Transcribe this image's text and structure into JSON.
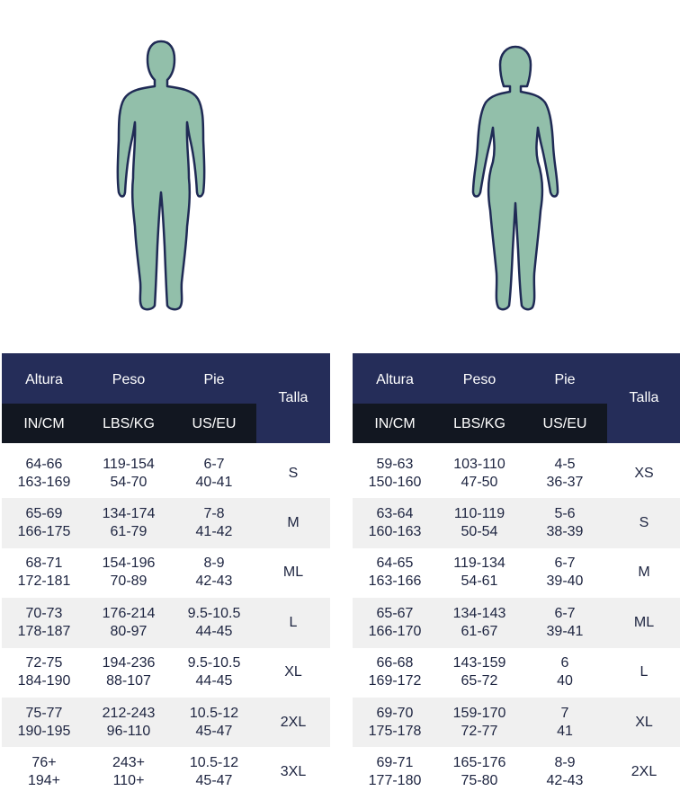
{
  "headers": {
    "altura": "Altura",
    "peso": "Peso",
    "pie": "Pie",
    "talla": "Talla",
    "in_cm": "IN/CM",
    "lbs_kg": "LBS/KG",
    "us_eu": "US/EU"
  },
  "colors": {
    "header_navy": "#252d59",
    "header_dark": "#121721",
    "figure_fill": "#92bfaa",
    "figure_outline": "#1f2a55",
    "row_alt": "#f0f0f0",
    "text": "#1d2440"
  },
  "men": {
    "rows": [
      {
        "altura_in": "64-66",
        "altura_cm": "163-169",
        "peso_lbs": "119-154",
        "peso_kg": "54-70",
        "pie_us": "6-7",
        "pie_eu": "40-41",
        "talla": "S"
      },
      {
        "altura_in": "65-69",
        "altura_cm": "166-175",
        "peso_lbs": "134-174",
        "peso_kg": "61-79",
        "pie_us": "7-8",
        "pie_eu": "41-42",
        "talla": "M"
      },
      {
        "altura_in": "68-71",
        "altura_cm": "172-181",
        "peso_lbs": "154-196",
        "peso_kg": "70-89",
        "pie_us": "8-9",
        "pie_eu": "42-43",
        "talla": "ML"
      },
      {
        "altura_in": "70-73",
        "altura_cm": "178-187",
        "peso_lbs": "176-214",
        "peso_kg": "80-97",
        "pie_us": "9.5-10.5",
        "pie_eu": "44-45",
        "talla": "L"
      },
      {
        "altura_in": "72-75",
        "altura_cm": "184-190",
        "peso_lbs": "194-236",
        "peso_kg": "88-107",
        "pie_us": "9.5-10.5",
        "pie_eu": "44-45",
        "talla": "XL"
      },
      {
        "altura_in": "75-77",
        "altura_cm": "190-195",
        "peso_lbs": "212-243",
        "peso_kg": "96-110",
        "pie_us": "10.5-12",
        "pie_eu": "45-47",
        "talla": "2XL"
      },
      {
        "altura_in": "76+",
        "altura_cm": "194+",
        "peso_lbs": "243+",
        "peso_kg": "110+",
        "pie_us": "10.5-12",
        "pie_eu": "45-47",
        "talla": "3XL"
      }
    ]
  },
  "women": {
    "rows": [
      {
        "altura_in": "59-63",
        "altura_cm": "150-160",
        "peso_lbs": "103-110",
        "peso_kg": "47-50",
        "pie_us": "4-5",
        "pie_eu": "36-37",
        "talla": "XS"
      },
      {
        "altura_in": "63-64",
        "altura_cm": "160-163",
        "peso_lbs": "110-119",
        "peso_kg": "50-54",
        "pie_us": "5-6",
        "pie_eu": "38-39",
        "talla": "S"
      },
      {
        "altura_in": "64-65",
        "altura_cm": "163-166",
        "peso_lbs": "119-134",
        "peso_kg": "54-61",
        "pie_us": "6-7",
        "pie_eu": "39-40",
        "talla": "M"
      },
      {
        "altura_in": "65-67",
        "altura_cm": "166-170",
        "peso_lbs": "134-143",
        "peso_kg": "61-67",
        "pie_us": "6-7",
        "pie_eu": "39-41",
        "talla": "ML"
      },
      {
        "altura_in": "66-68",
        "altura_cm": "169-172",
        "peso_lbs": "143-159",
        "peso_kg": "65-72",
        "pie_us": "6",
        "pie_eu": "40",
        "talla": "L"
      },
      {
        "altura_in": "69-70",
        "altura_cm": "175-178",
        "peso_lbs": "159-170",
        "peso_kg": "72-77",
        "pie_us": "7",
        "pie_eu": "41",
        "talla": "XL"
      },
      {
        "altura_in": "69-71",
        "altura_cm": "177-180",
        "peso_lbs": "165-176",
        "peso_kg": "75-80",
        "pie_us": "8-9",
        "pie_eu": "42-43",
        "talla": "2XL"
      }
    ]
  }
}
